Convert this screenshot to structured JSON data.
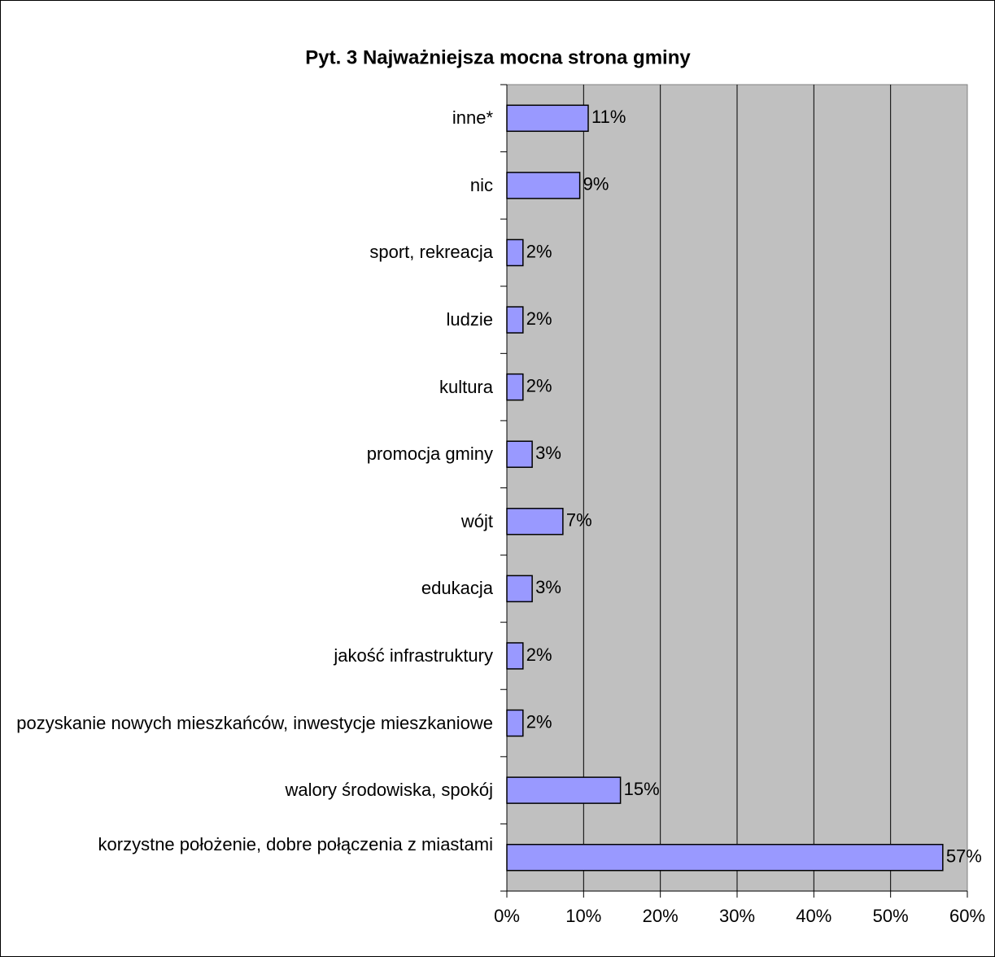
{
  "chart_data": {
    "type": "bar",
    "orientation": "horizontal",
    "title": "Pyt. 3 Najważniejsza mocna strona gminy",
    "categories": [
      "inne*",
      "nic",
      "sport, rekreacja",
      "ludzie",
      "kultura",
      "promocja gminy",
      "wójt",
      "edukacja",
      "jakość infrastruktury",
      "pozyskanie nowych mieszkańców, inwestycje mieszkaniowe",
      "walory środowiska, spokój",
      "korzystne położenie, dobre połączenia z miastami"
    ],
    "values": [
      10.6,
      9.5,
      2.1,
      2.1,
      2.1,
      3.3,
      7.3,
      3.3,
      2.1,
      2.1,
      14.8,
      56.8
    ],
    "value_labels": [
      "11%",
      "9%",
      "2%",
      "2%",
      "2%",
      "3%",
      "7%",
      "3%",
      "2%",
      "2%",
      "15%",
      "57%"
    ],
    "color": "#9999ff",
    "plot_background": "#c0c0c0",
    "grid": true,
    "xlim": [
      0,
      60
    ],
    "xticks": [
      {
        "value": 0,
        "label": "0%"
      },
      {
        "value": 10,
        "label": "10%"
      },
      {
        "value": 20,
        "label": "20%"
      },
      {
        "value": 30,
        "label": "30%"
      },
      {
        "value": 40,
        "label": "40%"
      },
      {
        "value": 50,
        "label": "50%"
      },
      {
        "value": 60,
        "label": "60%"
      }
    ]
  }
}
